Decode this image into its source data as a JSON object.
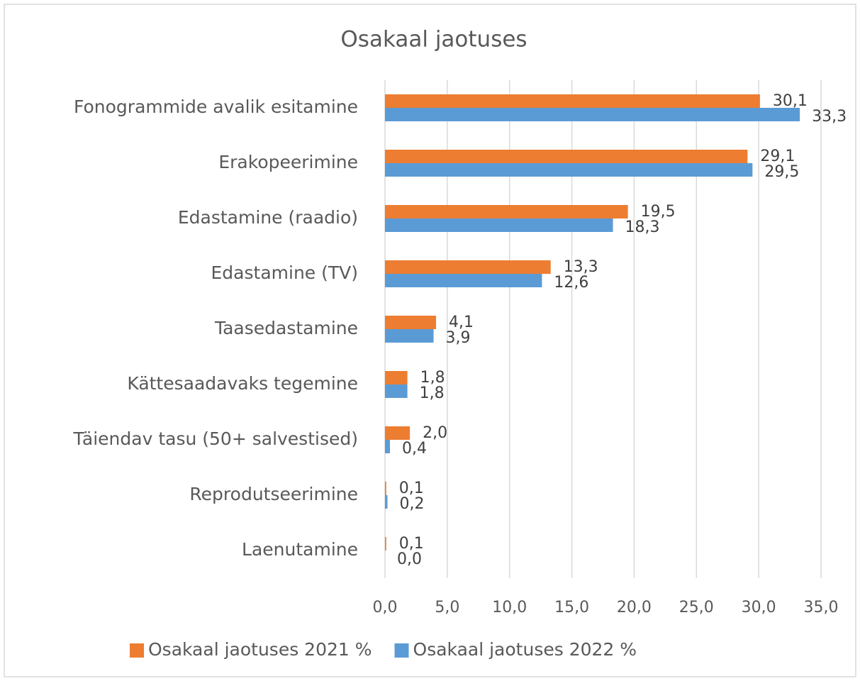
{
  "chart_data": {
    "type": "bar",
    "orientation": "horizontal",
    "title": "Osakaal jaotuses",
    "categories": [
      "Fonogrammide avalik esitamine",
      "Erakopeerimine",
      "Edastamine (raadio)",
      "Edastamine (TV)",
      "Taasedastamine",
      "Kättesaadavaks tegemine",
      "Täiendav tasu (50+ salvestised)",
      "Reprodutseerimine",
      "Laenutamine"
    ],
    "series": [
      {
        "name": "Osakaal jaotuses 2021 %",
        "color": "#ed7d31",
        "values": [
          30.1,
          29.1,
          19.5,
          13.3,
          4.1,
          1.8,
          2.0,
          0.1,
          0.1
        ],
        "value_labels": [
          "30,1",
          "29,1",
          "19,5",
          "13,3",
          "4,1",
          "1,8",
          "2,0",
          "0,1",
          "0,1"
        ]
      },
      {
        "name": "Osakaal jaotuses 2022 %",
        "color": "#5b9bd5",
        "values": [
          33.3,
          29.5,
          18.3,
          12.6,
          3.9,
          1.8,
          0.4,
          0.2,
          0.0
        ],
        "value_labels": [
          "33,3",
          "29,5",
          "18,3",
          "12,6",
          "3,9",
          "1,8",
          "0,4",
          "0,2",
          "0,0"
        ]
      }
    ],
    "xlim": [
      0,
      35
    ],
    "xticks": [
      {
        "value": 0,
        "label": "0,0"
      },
      {
        "value": 5,
        "label": "5,0"
      },
      {
        "value": 10,
        "label": "10,0"
      },
      {
        "value": 15,
        "label": "15,0"
      },
      {
        "value": 20,
        "label": "20,0"
      },
      {
        "value": 25,
        "label": "25,0"
      },
      {
        "value": 30,
        "label": "30,0"
      },
      {
        "value": 35,
        "label": "35,0"
      }
    ],
    "grid": true,
    "legend": "bottom"
  }
}
